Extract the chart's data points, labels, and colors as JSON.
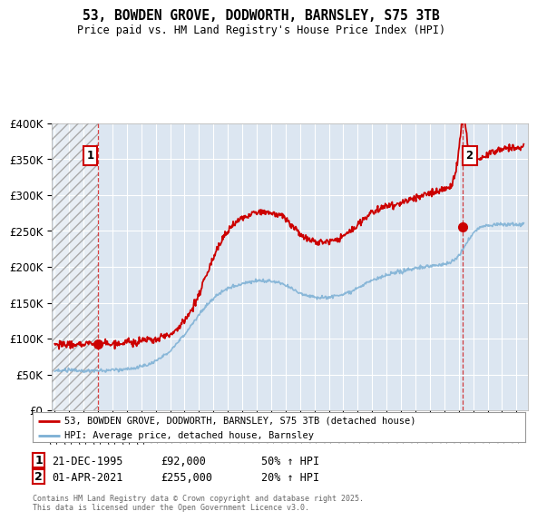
{
  "title": "53, BOWDEN GROVE, DODWORTH, BARNSLEY, S75 3TB",
  "subtitle": "Price paid vs. HM Land Registry's House Price Index (HPI)",
  "ylim": [
    0,
    400000
  ],
  "yticks": [
    0,
    50000,
    100000,
    150000,
    200000,
    250000,
    300000,
    350000,
    400000
  ],
  "ytick_labels": [
    "£0",
    "£50K",
    "£100K",
    "£150K",
    "£200K",
    "£250K",
    "£300K",
    "£350K",
    "£400K"
  ],
  "sale1_year": 1995.97,
  "sale1_price": 92000,
  "sale1_label": "1",
  "sale1_date": "21-DEC-1995",
  "sale1_price_str": "£92,000",
  "sale1_hpi": "50% ↑ HPI",
  "sale2_year": 2021.25,
  "sale2_price": 255000,
  "sale2_label": "2",
  "sale2_date": "01-APR-2021",
  "sale2_price_str": "£255,000",
  "sale2_hpi": "20% ↑ HPI",
  "legend_line1": "53, BOWDEN GROVE, DODWORTH, BARNSLEY, S75 3TB (detached house)",
  "legend_line2": "HPI: Average price, detached house, Barnsley",
  "footer": "Contains HM Land Registry data © Crown copyright and database right 2025.\nThis data is licensed under the Open Government Licence v3.0.",
  "line_color_red": "#cc0000",
  "line_color_blue": "#7bafd4",
  "bg_color": "#dce6f1",
  "grid_color": "#ffffff",
  "marker_box_color": "#cc0000",
  "xlim_left": 1992.8,
  "xlim_right": 2025.8
}
